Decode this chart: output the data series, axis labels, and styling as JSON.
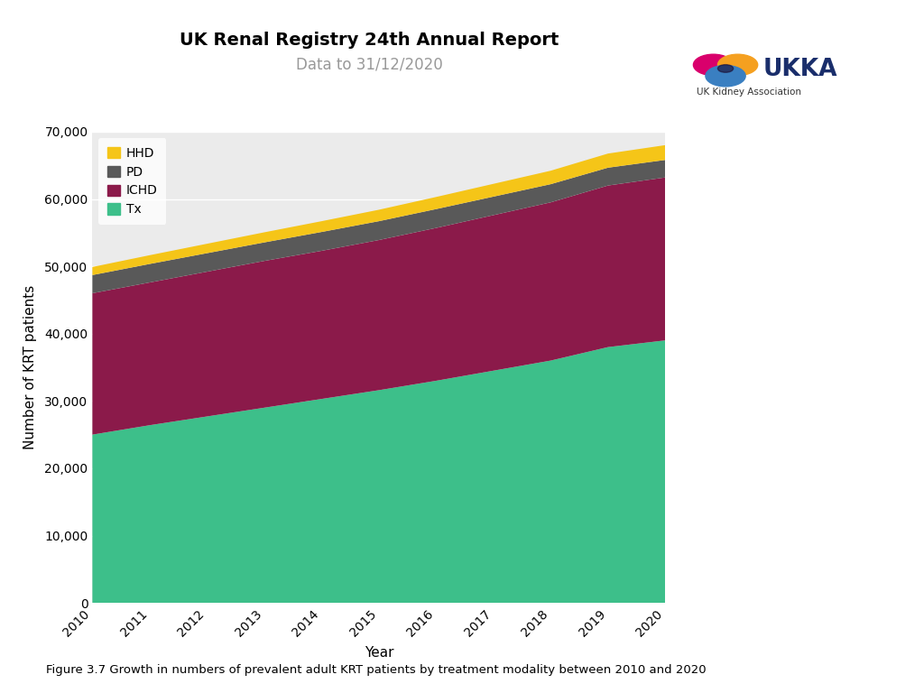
{
  "title": "UK Renal Registry 24th Annual Report",
  "subtitle": "Data to 31/12/2020",
  "xlabel": "Year",
  "ylabel": "Number of KRT patients",
  "years": [
    2010,
    2011,
    2012,
    2013,
    2014,
    2015,
    2016,
    2017,
    2018,
    2019,
    2020
  ],
  "Tx": [
    25000,
    26400,
    27700,
    29000,
    30300,
    31600,
    33000,
    34500,
    36000,
    38000,
    39000
  ],
  "ICHD": [
    21000,
    21200,
    21500,
    21800,
    22000,
    22300,
    22700,
    23100,
    23500,
    24000,
    24200
  ],
  "PD": [
    2700,
    2750,
    2750,
    2750,
    2800,
    2800,
    2800,
    2750,
    2700,
    2650,
    2600
  ],
  "HHD": [
    1200,
    1300,
    1400,
    1500,
    1600,
    1700,
    1800,
    1900,
    2000,
    2100,
    2200
  ],
  "colors": {
    "Tx": "#3dbf8a",
    "ICHD": "#8b1a4a",
    "PD": "#595959",
    "HHD": "#f5c518"
  },
  "ylim": [
    0,
    70000
  ],
  "yticks": [
    0,
    10000,
    20000,
    30000,
    40000,
    50000,
    60000,
    70000
  ],
  "figure_caption": "Figure 3.7 Growth in numbers of prevalent adult KRT patients by treatment modality between 2010 and 2020",
  "plot_bg_color": "#ebebeb"
}
